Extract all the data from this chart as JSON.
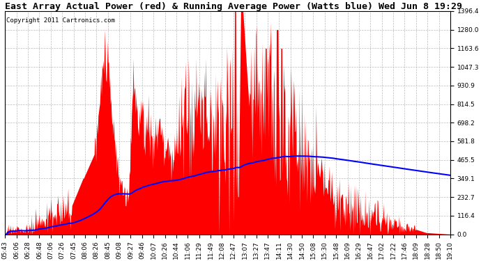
{
  "title": "East Array Actual Power (red) & Running Average Power (Watts blue) Wed Jun 8 19:29",
  "copyright": "Copyright 2011 Cartronics.com",
  "ymin": 0.0,
  "ymax": 1396.4,
  "yticks": [
    0.0,
    116.4,
    232.7,
    349.1,
    465.5,
    581.8,
    698.2,
    814.5,
    930.9,
    1047.3,
    1163.6,
    1280.0,
    1396.4
  ],
  "xtick_labels": [
    "05:43",
    "06:06",
    "06:28",
    "06:48",
    "07:06",
    "07:26",
    "07:45",
    "08:06",
    "08:26",
    "08:45",
    "09:08",
    "09:27",
    "09:46",
    "10:07",
    "10:26",
    "10:44",
    "11:06",
    "11:29",
    "11:49",
    "12:08",
    "12:47",
    "13:07",
    "13:27",
    "13:47",
    "14:11",
    "14:30",
    "14:50",
    "15:08",
    "15:30",
    "15:48",
    "16:09",
    "16:29",
    "16:47",
    "17:02",
    "17:22",
    "17:46",
    "18:09",
    "18:28",
    "18:50",
    "19:10"
  ],
  "bg_color": "#ffffff",
  "plot_bg_color": "#ffffff",
  "grid_color": "#bbbbbb",
  "fill_color": "#ff0000",
  "line_color": "#0000ff",
  "title_fontsize": 9.5,
  "copyright_fontsize": 6.5,
  "tick_fontsize": 6.5
}
